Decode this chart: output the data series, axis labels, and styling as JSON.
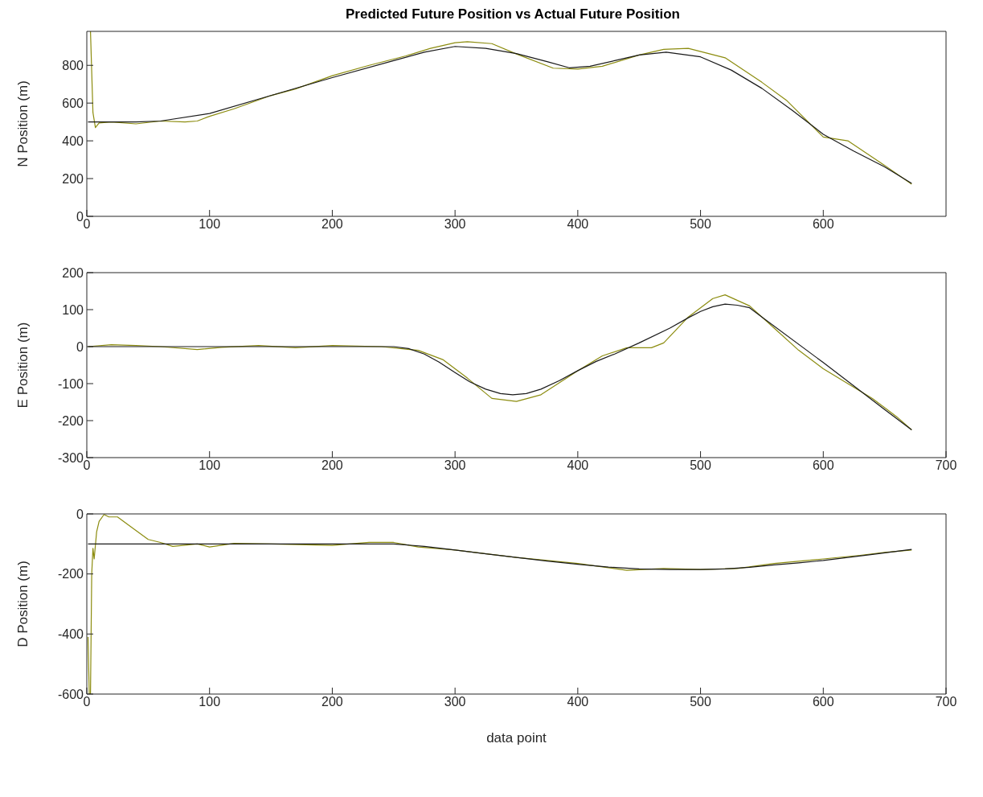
{
  "chart_data": [
    {
      "type": "line",
      "title": "Predicted Future Position vs Actual Future Position",
      "ylabel": "N Position (m)",
      "xlim": [
        0,
        700
      ],
      "xticks": [
        0,
        100,
        200,
        300,
        400,
        500,
        600
      ],
      "ylim": [
        0,
        980
      ],
      "yticks": [
        0,
        200,
        400,
        600,
        800
      ],
      "marker": "none",
      "line_style": "solid",
      "series": [
        {
          "color": "#8c8c0f",
          "x": [
            3,
            5,
            7,
            10,
            20,
            40,
            60,
            80,
            90,
            100,
            120,
            150,
            170,
            200,
            230,
            260,
            280,
            300,
            310,
            330,
            350,
            380,
            400,
            420,
            450,
            470,
            490,
            520,
            550,
            570,
            600,
            620,
            650,
            672
          ],
          "values": [
            980,
            550,
            470,
            495,
            500,
            490,
            505,
            500,
            505,
            530,
            570,
            640,
            675,
            745,
            800,
            850,
            890,
            920,
            925,
            915,
            860,
            785,
            780,
            795,
            855,
            885,
            890,
            840,
            710,
            615,
            420,
            400,
            270,
            170
          ]
        },
        {
          "color": "#1a1a1a",
          "x": [
            1,
            40,
            60,
            100,
            150,
            200,
            250,
            275,
            300,
            325,
            350,
            375,
            393,
            410,
            430,
            450,
            472,
            500,
            525,
            550,
            575,
            600,
            625,
            650,
            672
          ],
          "values": [
            500,
            500,
            505,
            545,
            640,
            735,
            825,
            870,
            900,
            890,
            862,
            820,
            787,
            795,
            825,
            855,
            870,
            845,
            775,
            678,
            560,
            435,
            345,
            262,
            175
          ]
        }
      ]
    },
    {
      "type": "line",
      "ylabel": "E Position (m)",
      "xlim": [
        0,
        700
      ],
      "xticks": [
        0,
        100,
        200,
        300,
        400,
        500,
        600,
        700
      ],
      "ylim": [
        -300,
        200
      ],
      "yticks": [
        -300,
        -200,
        -100,
        0,
        100,
        200
      ],
      "marker": "none",
      "line_style": "solid",
      "series": [
        {
          "color": "#8c8c0f",
          "x": [
            1,
            20,
            40,
            60,
            90,
            110,
            140,
            170,
            200,
            240,
            270,
            290,
            310,
            330,
            350,
            370,
            400,
            420,
            440,
            460,
            470,
            490,
            510,
            520,
            540,
            560,
            580,
            600,
            620,
            640,
            660,
            672
          ],
          "values": [
            0,
            5,
            3,
            0,
            -8,
            -2,
            3,
            -3,
            3,
            0,
            -10,
            -35,
            -85,
            -140,
            -148,
            -130,
            -65,
            -25,
            -3,
            -3,
            10,
            80,
            130,
            140,
            110,
            50,
            -10,
            -60,
            -100,
            -140,
            -190,
            -225
          ]
        },
        {
          "color": "#1a1a1a",
          "x": [
            1,
            100,
            200,
            250,
            262,
            275,
            287,
            300,
            312,
            325,
            337,
            347,
            358,
            370,
            385,
            400,
            415,
            430,
            450,
            475,
            490,
            500,
            510,
            520,
            530,
            540,
            550,
            600,
            650,
            672
          ],
          "values": [
            0,
            0,
            0,
            0,
            -5,
            -20,
            -42,
            -70,
            -95,
            -115,
            -127,
            -130,
            -127,
            -115,
            -92,
            -65,
            -40,
            -20,
            10,
            50,
            78,
            95,
            108,
            115,
            112,
            105,
            80,
            -43,
            -170,
            -225
          ]
        }
      ]
    },
    {
      "type": "line",
      "ylabel": "D Position (m)",
      "xlabel": "data point",
      "xlim": [
        0,
        700
      ],
      "xticks": [
        0,
        100,
        200,
        300,
        400,
        500,
        600,
        700
      ],
      "ylim": [
        -600,
        0
      ],
      "yticks": [
        -600,
        -400,
        -200,
        0
      ],
      "marker": "none",
      "line_style": "solid",
      "series": [
        {
          "color": "#8c8c0f",
          "x": [
            1,
            2,
            3,
            4,
            5,
            6,
            8,
            10,
            14,
            18,
            25,
            35,
            50,
            60,
            70,
            90,
            100,
            120,
            150,
            200,
            230,
            250,
            270,
            300,
            350,
            400,
            440,
            470,
            500,
            530,
            560,
            600,
            630,
            650,
            672
          ],
          "values": [
            -410,
            -600,
            -600,
            -200,
            -115,
            -150,
            -60,
            -25,
            -2,
            -10,
            -10,
            -40,
            -85,
            -95,
            -108,
            -100,
            -110,
            -98,
            -100,
            -105,
            -95,
            -95,
            -110,
            -120,
            -145,
            -165,
            -188,
            -182,
            -185,
            -182,
            -165,
            -150,
            -138,
            -128,
            -120
          ]
        },
        {
          "color": "#1a1a1a",
          "x": [
            1,
            100,
            200,
            250,
            275,
            300,
            325,
            350,
            375,
            400,
            425,
            450,
            475,
            500,
            520,
            540,
            560,
            580,
            600,
            620,
            640,
            672
          ],
          "values": [
            -100,
            -100,
            -100,
            -100,
            -108,
            -120,
            -133,
            -145,
            -157,
            -168,
            -177,
            -183,
            -185,
            -185,
            -183,
            -178,
            -170,
            -163,
            -155,
            -145,
            -135,
            -118
          ]
        }
      ]
    }
  ]
}
